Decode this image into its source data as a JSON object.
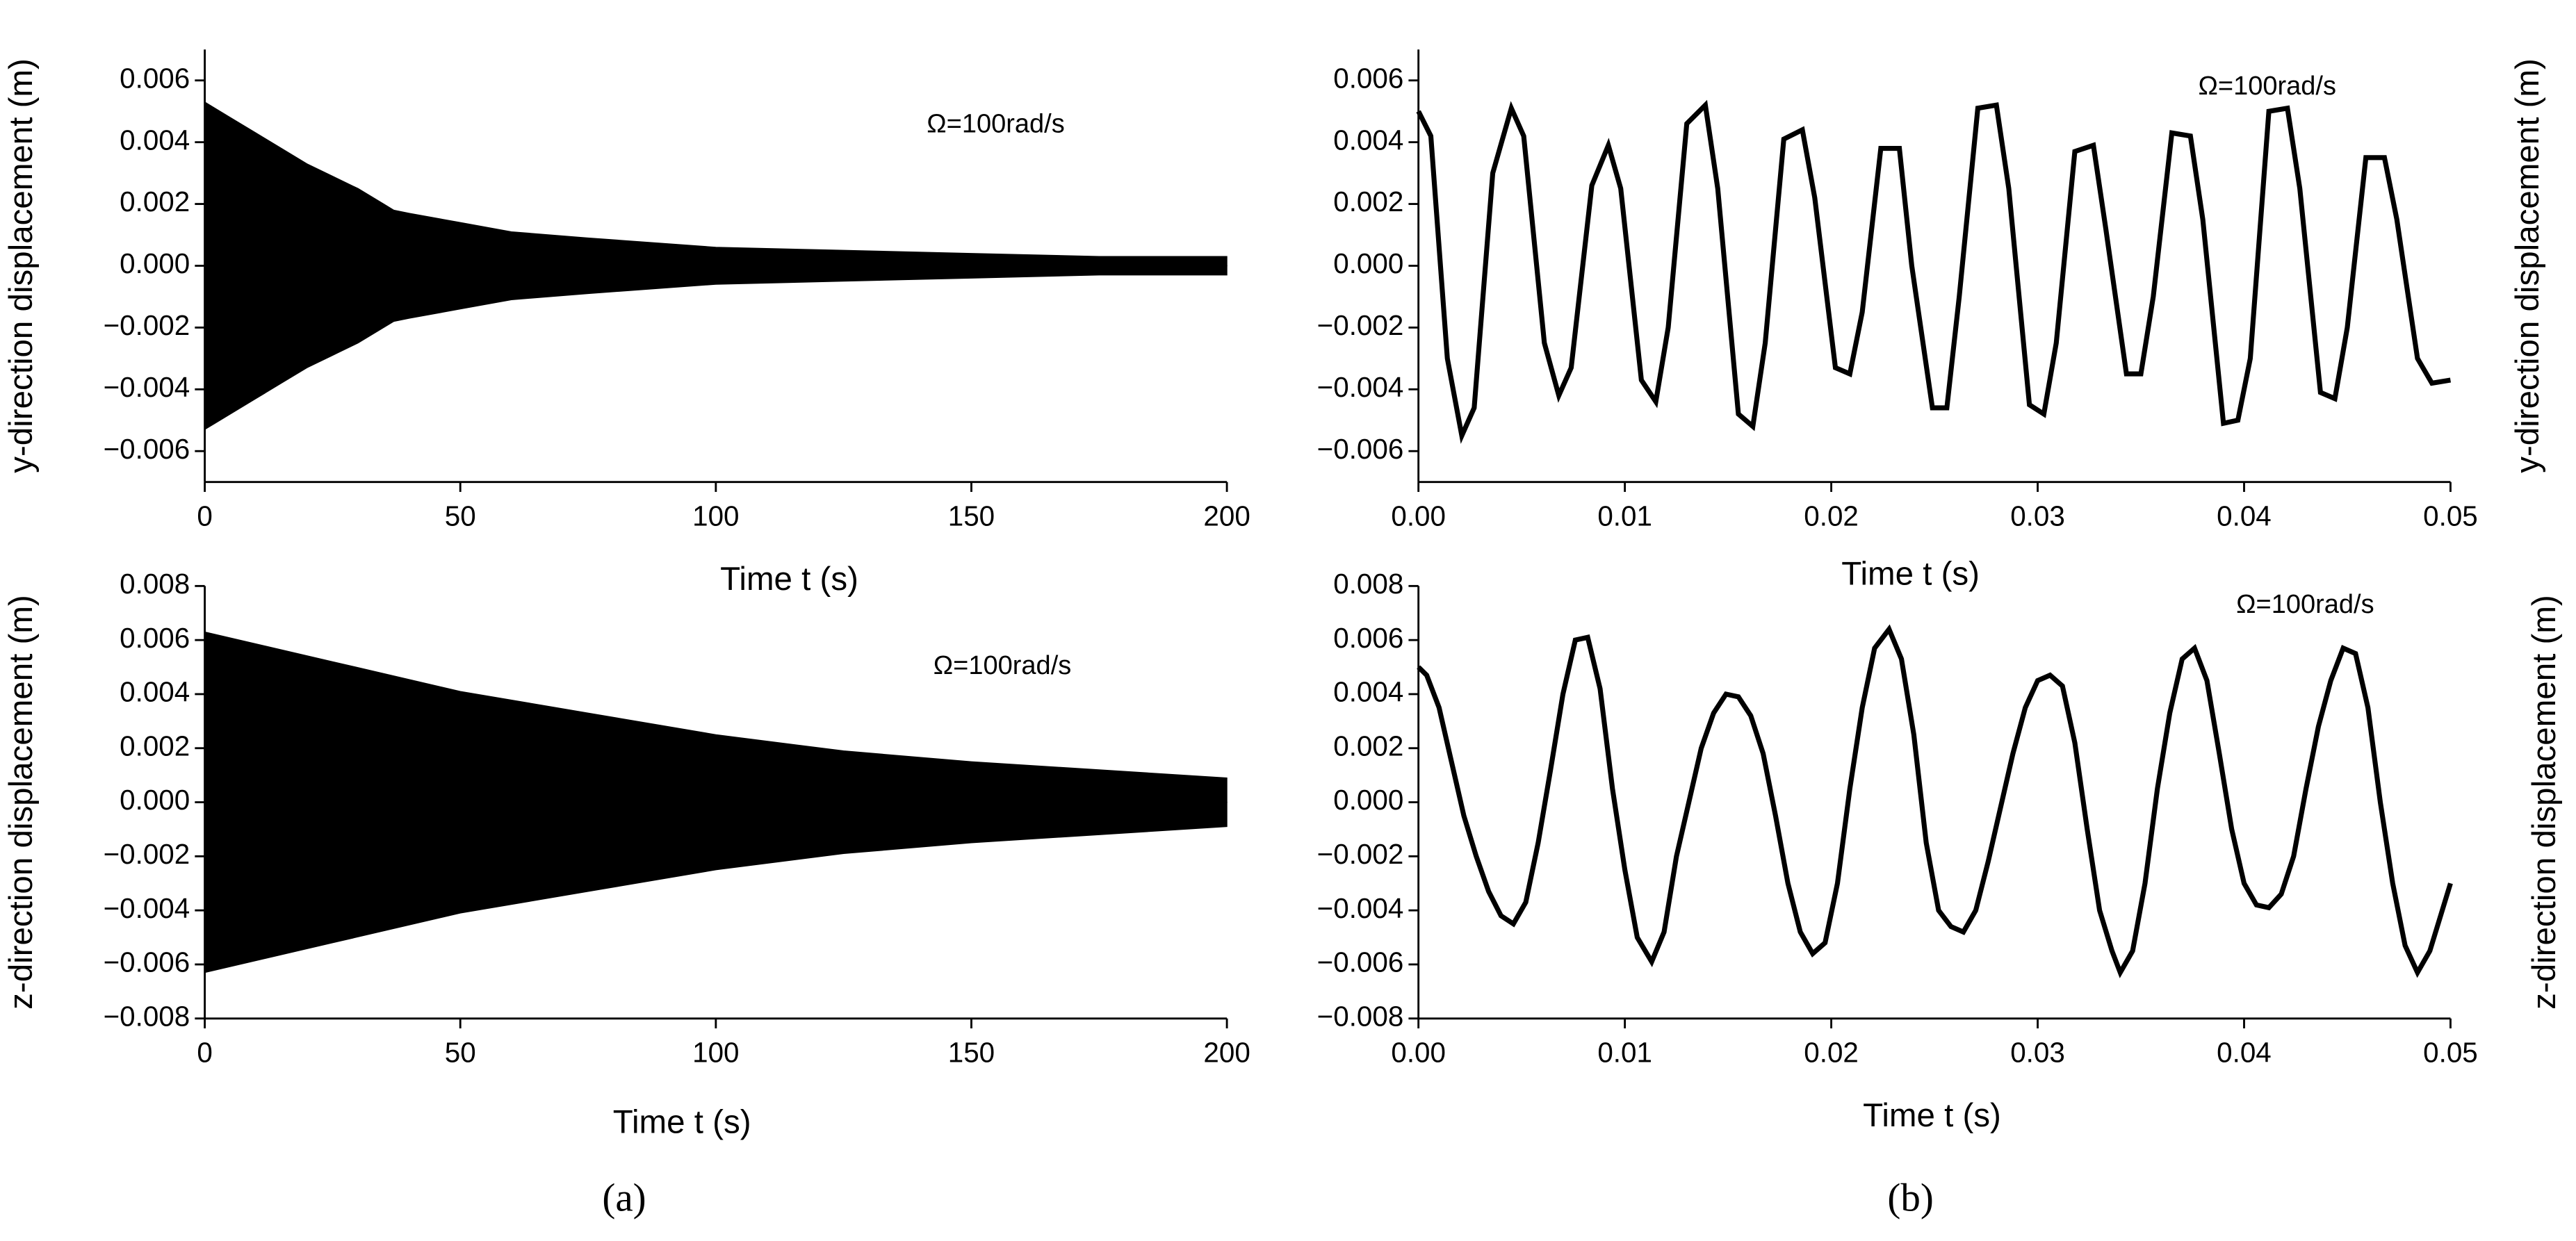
{
  "chart_data": [
    {
      "type": "area",
      "ylabel": "y-direction displacement (m)",
      "xlabel": "Time t (s)",
      "annotation": "Ω=100rad/s",
      "xlim": [
        0,
        200
      ],
      "ylim": [
        -0.007,
        0.007
      ],
      "xticks": [
        0,
        50,
        100,
        150,
        200
      ],
      "yticks": [
        {
          "value": -0.006,
          "label": "−0.006"
        },
        {
          "value": -0.004,
          "label": "−0.004"
        },
        {
          "value": -0.002,
          "label": "−0.002"
        },
        {
          "value": 0,
          "label": "0.000"
        },
        0.002,
        0.004,
        0.006
      ],
      "x": [
        0,
        2,
        5,
        10,
        15,
        20,
        25,
        30,
        35,
        37,
        40,
        50,
        60,
        75,
        100,
        125,
        150,
        175,
        200
      ],
      "series": [
        {
          "color": "#000000",
          "values": [
            0.0053,
            0.0051,
            0.0048,
            0.0043,
            0.0038,
            0.0033,
            0.0029,
            0.0025,
            0.002,
            0.0018,
            0.0017,
            0.0014,
            0.0011,
            0.0009,
            0.0006,
            0.0005,
            0.0004,
            0.0003,
            0.0003
          ]
        },
        {
          "color": "#000000",
          "values": [
            -0.0053,
            -0.0051,
            -0.0048,
            -0.0043,
            -0.0038,
            -0.0033,
            -0.0029,
            -0.0025,
            -0.002,
            -0.0018,
            -0.0017,
            -0.0014,
            -0.0011,
            -0.0009,
            -0.0006,
            -0.0005,
            -0.0004,
            -0.0003,
            -0.0003
          ]
        }
      ]
    },
    {
      "type": "line",
      "ylabel": "y-direction displacement (m)",
      "xlabel": "Time t (s)",
      "annotation": "Ω=100rad/s",
      "xlim": [
        0,
        0.05
      ],
      "ylim": [
        -0.007,
        0.007
      ],
      "xticks": [
        {
          "value": 0,
          "label": "0.00"
        },
        0.01,
        0.02,
        0.03,
        0.04,
        0.05
      ],
      "yticks": [
        {
          "value": -0.006,
          "label": "−0.006"
        },
        {
          "value": -0.004,
          "label": "−0.004"
        },
        {
          "value": -0.002,
          "label": "−0.002"
        },
        {
          "value": 0,
          "label": "0.000"
        },
        0.002,
        0.004,
        0.006
      ],
      "x": [
        0,
        0.0006,
        0.0014,
        0.0021,
        0.0027,
        0.0036,
        0.0045,
        0.0051,
        0.0061,
        0.0068,
        0.0074,
        0.0084,
        0.0092,
        0.0098,
        0.0108,
        0.0115,
        0.0121,
        0.013,
        0.0139,
        0.0145,
        0.0155,
        0.0162,
        0.0168,
        0.0177,
        0.0186,
        0.0192,
        0.0202,
        0.0209,
        0.0215,
        0.0224,
        0.0233,
        0.0239,
        0.0249,
        0.0256,
        0.0262,
        0.0271,
        0.028,
        0.0286,
        0.0296,
        0.0303,
        0.0309,
        0.0318,
        0.0327,
        0.0333,
        0.0343,
        0.035,
        0.0356,
        0.0365,
        0.0374,
        0.038,
        0.039,
        0.0397,
        0.0403,
        0.0412,
        0.0421,
        0.0427,
        0.0437,
        0.0444,
        0.045,
        0.0459,
        0.0468,
        0.0474,
        0.0484,
        0.0491,
        0.05
      ],
      "series": [
        {
          "color": "#000000",
          "values": [
            0.005,
            0.0042,
            -0.003,
            -0.0055,
            -0.0046,
            0.003,
            0.0051,
            0.0042,
            -0.0025,
            -0.0042,
            -0.0033,
            0.0026,
            0.0039,
            0.0025,
            -0.0037,
            -0.0044,
            -0.002,
            0.0046,
            0.0052,
            0.0025,
            -0.0048,
            -0.0052,
            -0.0025,
            0.0041,
            0.0044,
            0.0022,
            -0.0033,
            -0.0035,
            -0.0015,
            0.0038,
            0.0038,
            0,
            -0.0046,
            -0.0046,
            -0.001,
            0.0051,
            0.0052,
            0.0025,
            -0.0045,
            -0.0048,
            -0.0025,
            0.0037,
            0.0039,
            0.0012,
            -0.0035,
            -0.0035,
            -0.001,
            0.0043,
            0.0042,
            0.0015,
            -0.0051,
            -0.005,
            -0.003,
            0.005,
            0.0051,
            0.0025,
            -0.0041,
            -0.0043,
            -0.002,
            0.0035,
            0.0035,
            0.0015,
            -0.003,
            -0.0038,
            -0.0037
          ]
        }
      ]
    },
    {
      "type": "area",
      "ylabel": "z-direction displacement (m)",
      "xlabel": "Time t (s)",
      "annotation": "Ω=100rad/s",
      "xlim": [
        0,
        200
      ],
      "ylim": [
        -0.008,
        0.008
      ],
      "xticks": [
        0,
        50,
        100,
        150,
        200
      ],
      "yticks": [
        {
          "value": -0.008,
          "label": "−0.008"
        },
        {
          "value": -0.006,
          "label": "−0.006"
        },
        {
          "value": -0.004,
          "label": "−0.004"
        },
        {
          "value": -0.002,
          "label": "−0.002"
        },
        {
          "value": 0,
          "label": "0.000"
        },
        0.002,
        0.004,
        0.006,
        0.008
      ],
      "x": [
        0,
        25,
        50,
        75,
        100,
        125,
        150,
        175,
        200
      ],
      "series": [
        {
          "color": "#000000",
          "values": [
            0.0063,
            0.0052,
            0.0041,
            0.0033,
            0.0025,
            0.0019,
            0.0015,
            0.0012,
            0.0009
          ]
        },
        {
          "color": "#000000",
          "values": [
            -0.0063,
            -0.0052,
            -0.0041,
            -0.0033,
            -0.0025,
            -0.0019,
            -0.0015,
            -0.0012,
            -0.0009
          ]
        }
      ]
    },
    {
      "type": "line",
      "ylabel": "z-direction displacement (m)",
      "xlabel": "Time t (s)",
      "annotation": "Ω=100rad/s",
      "xlim": [
        0,
        0.05
      ],
      "ylim": [
        -0.008,
        0.008
      ],
      "xticks": [
        {
          "value": 0,
          "label": "0.00"
        },
        0.01,
        0.02,
        0.03,
        0.04,
        0.05
      ],
      "yticks": [
        {
          "value": -0.008,
          "label": "−0.008"
        },
        {
          "value": -0.006,
          "label": "−0.006"
        },
        {
          "value": -0.004,
          "label": "−0.004"
        },
        {
          "value": -0.002,
          "label": "−0.002"
        },
        {
          "value": 0,
          "label": "0.000"
        },
        0.002,
        0.004,
        0.006,
        0.008
      ],
      "x": [
        0,
        0.0004,
        0.001,
        0.0016,
        0.0022,
        0.0028,
        0.0034,
        0.004,
        0.0046,
        0.0052,
        0.0058,
        0.0064,
        0.007,
        0.0076,
        0.0082,
        0.0088,
        0.0094,
        0.01,
        0.0106,
        0.0113,
        0.0119,
        0.0125,
        0.0131,
        0.0137,
        0.0143,
        0.0149,
        0.0155,
        0.0161,
        0.0167,
        0.0173,
        0.0179,
        0.0185,
        0.0191,
        0.0197,
        0.0203,
        0.0209,
        0.0215,
        0.0221,
        0.0228,
        0.0234,
        0.024,
        0.0246,
        0.0252,
        0.0258,
        0.0264,
        0.027,
        0.0276,
        0.0282,
        0.0288,
        0.0294,
        0.03,
        0.0306,
        0.0312,
        0.0318,
        0.0324,
        0.033,
        0.0336,
        0.034,
        0.0346,
        0.0352,
        0.0358,
        0.0364,
        0.037,
        0.0376,
        0.0382,
        0.0388,
        0.0394,
        0.04,
        0.0406,
        0.0412,
        0.0418,
        0.0424,
        0.043,
        0.0436,
        0.0442,
        0.0448,
        0.0454,
        0.046,
        0.0466,
        0.0472,
        0.0478,
        0.0484,
        0.049,
        0.05
      ],
      "series": [
        {
          "color": "#000000",
          "values": [
            0.005,
            0.0047,
            0.0035,
            0.0015,
            -0.0005,
            -0.002,
            -0.0033,
            -0.0042,
            -0.0045,
            -0.0037,
            -0.0015,
            0.0012,
            0.004,
            0.006,
            0.0061,
            0.0042,
            0.0005,
            -0.0025,
            -0.005,
            -0.0059,
            -0.0048,
            -0.002,
            0,
            0.002,
            0.0033,
            0.004,
            0.0039,
            0.0032,
            0.0018,
            -0.0005,
            -0.003,
            -0.0048,
            -0.0056,
            -0.0052,
            -0.003,
            0.0005,
            0.0035,
            0.0057,
            0.0064,
            0.0053,
            0.0025,
            -0.0015,
            -0.004,
            -0.0046,
            -0.0048,
            -0.004,
            -0.0022,
            -0.0002,
            0.0018,
            0.0035,
            0.0045,
            0.0047,
            0.0043,
            0.0022,
            -0.001,
            -0.004,
            -0.0055,
            -0.0063,
            -0.0055,
            -0.003,
            0.0005,
            0.0033,
            0.0053,
            0.0057,
            0.0045,
            0.0018,
            -0.001,
            -0.003,
            -0.0038,
            -0.0039,
            -0.0034,
            -0.002,
            0.0005,
            0.0028,
            0.0045,
            0.0057,
            0.0055,
            0.0035,
            0,
            -0.003,
            -0.0053,
            -0.0063,
            -0.0055,
            -0.003
          ]
        }
      ]
    }
  ],
  "panel_labels": [
    "(a)",
    "(b)"
  ]
}
